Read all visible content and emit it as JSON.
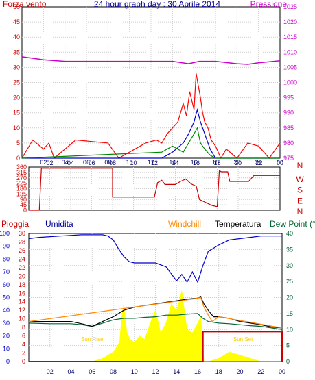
{
  "chart_data": [
    {
      "type": "line",
      "title": "24 hour graph day : 30 Aprile 2014",
      "left_label": "Forza vento",
      "right_label": "Pressione",
      "x_ticks": [
        "02",
        "04",
        "06",
        "08",
        "10",
        "12",
        "14",
        "16",
        "18",
        "20",
        "22",
        "00"
      ],
      "ylim": [
        0,
        50
      ],
      "y_ticks": [
        "0",
        "5",
        "10",
        "15",
        "20",
        "25",
        "30",
        "35",
        "40",
        "45",
        "50"
      ],
      "y2lim": [
        975,
        1025
      ],
      "y2_ticks": [
        "975",
        "980",
        "985",
        "990",
        "995",
        "1000",
        "1005",
        "1010",
        "1015",
        "1020",
        "1025"
      ],
      "series": [
        {
          "role": "pressure",
          "color": "#cc00cc",
          "axis": "right",
          "x": [
            0,
            2,
            4,
            6,
            8,
            10,
            12,
            14,
            15.5,
            16.5,
            18,
            20,
            21,
            22,
            24
          ],
          "y": [
            1008.5,
            1007.5,
            1007,
            1007,
            1007,
            1007,
            1007,
            1007,
            1006.2,
            1007,
            1007,
            1006.2,
            1006,
            1006.5,
            1007.2
          ]
        },
        {
          "role": "wind_gust",
          "color": "#ff0000",
          "axis": "left",
          "x": [
            0,
            1,
            2,
            2.5,
            3,
            5,
            8,
            9,
            11,
            11.5,
            12.5,
            13,
            13.5,
            14,
            14.5,
            15,
            15.3,
            15.6,
            16,
            16.2,
            16.4,
            16.6,
            16.8,
            17,
            17.3,
            17.6,
            18,
            18.5,
            19,
            20,
            21,
            22,
            23,
            24
          ],
          "y": [
            0,
            6,
            3,
            5,
            0,
            6,
            5,
            0,
            4,
            5,
            6,
            5,
            8,
            10,
            12,
            18,
            14,
            22,
            16,
            28,
            24,
            20,
            15,
            12,
            10,
            6,
            4,
            0,
            3,
            0,
            5,
            4,
            0,
            5
          ]
        },
        {
          "role": "wind_avg",
          "color": "#0000cc",
          "axis": "left",
          "x": [
            0,
            13,
            14,
            15,
            15.5,
            16,
            16.3,
            16.6,
            17,
            17.5,
            18,
            24
          ],
          "y": [
            0,
            0,
            2,
            5,
            8,
            12,
            16,
            12,
            8,
            3,
            0,
            0
          ]
        },
        {
          "role": "wind_min",
          "color": "#008800",
          "axis": "left",
          "x": [
            0,
            13,
            14,
            15,
            15.5,
            16,
            16.3,
            16.6,
            17,
            17.5,
            18,
            24
          ],
          "y": [
            0,
            2,
            4,
            2,
            5,
            8,
            10,
            5,
            3,
            1,
            0,
            0
          ]
        }
      ]
    },
    {
      "type": "line",
      "right_ticks": [
        "N",
        "W",
        "S",
        "E",
        "N"
      ],
      "x_ticks": [
        "02",
        "04",
        "06",
        "08",
        "10",
        "12",
        "14",
        "16",
        "18",
        "20",
        "22",
        "00"
      ],
      "ylim": [
        0,
        360
      ],
      "y_ticks": [
        "0",
        "45",
        "90",
        "135",
        "180",
        "225",
        "270",
        "315",
        "360"
      ],
      "series": [
        {
          "role": "wind_direction",
          "color": "#cc0000",
          "x": [
            0,
            1,
            1.2,
            8,
            8,
            12,
            12.3,
            12.7,
            13,
            14,
            14.5,
            15,
            15.5,
            16,
            16.3,
            17,
            17.5,
            18,
            18.2,
            18.4,
            19,
            19.2,
            21,
            21.5,
            24
          ],
          "y": [
            0,
            0,
            350,
            350,
            110,
            110,
            230,
            250,
            215,
            215,
            240,
            260,
            220,
            200,
            90,
            60,
            40,
            30,
            330,
            320,
            320,
            240,
            240,
            290,
            290
          ]
        }
      ]
    },
    {
      "type": "line",
      "labels": {
        "rain": "Pioggia",
        "humidity": "Umidita",
        "windchill": "Windchill",
        "temperature": "Temperatura",
        "dewpoint": "Dew Point (°C"
      },
      "x_ticks": [
        "02",
        "04",
        "06",
        "08",
        "10",
        "12",
        "14",
        "16",
        "18",
        "20",
        "22",
        "00"
      ],
      "humidity_ticks": [
        "0",
        "10",
        "20",
        "30",
        "40",
        "50",
        "60",
        "70",
        "80",
        "90",
        "100"
      ],
      "rain_ticks": [
        "0",
        "2",
        "4",
        "6",
        "8",
        "10",
        "12",
        "14",
        "16",
        "18",
        "20",
        "22",
        "24",
        "26",
        "28",
        "30"
      ],
      "temp_ticks": [
        "0",
        "5",
        "10",
        "15",
        "20",
        "25",
        "30",
        "35",
        "40"
      ],
      "annotations": [
        {
          "text": "Sun Rise",
          "x": 6
        },
        {
          "text": "Sun Set",
          "x": 20.3
        }
      ],
      "series": [
        {
          "role": "humidity",
          "color": "#0000cc",
          "axis": "humidity",
          "x": [
            0,
            1,
            3,
            5,
            7,
            7.5,
            8,
            8.5,
            9,
            9.5,
            10,
            11,
            12,
            13,
            14,
            14.5,
            15,
            15.5,
            16,
            16.5,
            17,
            18,
            19,
            20,
            21,
            22,
            23,
            24
          ],
          "y": [
            96,
            97,
            98,
            99,
            99,
            98,
            95,
            88,
            82,
            78,
            77,
            77,
            77,
            74,
            63,
            68,
            62,
            70,
            62,
            75,
            86,
            91,
            95,
            96,
            97,
            98,
            98,
            98
          ]
        },
        {
          "role": "temperature",
          "color": "#000000",
          "axis": "temp",
          "x": [
            0,
            2,
            4,
            5,
            6,
            7,
            8,
            9,
            10,
            11,
            12,
            13,
            14,
            15,
            16,
            16.3,
            16.6,
            17,
            17.5,
            18,
            19,
            20,
            21,
            22,
            23,
            24
          ],
          "y": [
            12.5,
            12.5,
            12.5,
            11.8,
            11,
            12.5,
            14,
            16,
            17,
            17.5,
            18,
            18.5,
            19,
            19.5,
            19.8,
            20.2,
            18,
            16,
            14,
            14,
            13.5,
            12.5,
            12,
            11.5,
            10.8,
            10.5
          ]
        },
        {
          "role": "dewpoint",
          "color": "#006633",
          "axis": "temp",
          "x": [
            0,
            2,
            4,
            5,
            6,
            7,
            8,
            9,
            10,
            11,
            12,
            13,
            14,
            15,
            16,
            16.5,
            17,
            18,
            19,
            20,
            21,
            22,
            23,
            24
          ],
          "y": [
            12,
            11.8,
            11.8,
            11.5,
            11,
            12,
            13,
            13.5,
            13.5,
            13.8,
            14,
            14.5,
            14.5,
            14.8,
            15,
            13.5,
            12.5,
            12,
            11.8,
            11.5,
            11.2,
            11,
            10.5,
            10
          ]
        },
        {
          "role": "windchill",
          "color": "#ff8800",
          "axis": "temp",
          "x": [
            0,
            15.5,
            16,
            16.3,
            16.6,
            17,
            17.4,
            17.8,
            18,
            24
          ],
          "y": [
            12.5,
            19.5,
            19.8,
            20,
            17,
            14.5,
            12.5,
            13.5,
            14,
            10.5
          ]
        },
        {
          "role": "rain",
          "color": "#cc0000",
          "axis": "rain",
          "x": [
            0,
            16.5,
            16.5,
            24,
            24
          ],
          "y": [
            0,
            0,
            7,
            7,
            0
          ]
        },
        {
          "role": "solar",
          "color": "#ffff00",
          "axis": "temp",
          "x": [
            0,
            6,
            7,
            8,
            8.6,
            8.8,
            9,
            9.3,
            9.6,
            10,
            10.5,
            11,
            11.5,
            12,
            12.5,
            13,
            13.5,
            14,
            14.5,
            15,
            15.5,
            16,
            16.3,
            16.5,
            16.6,
            17,
            18,
            19,
            20,
            21,
            22,
            24
          ],
          "y": [
            0,
            0,
            1,
            3,
            6,
            14,
            18,
            9,
            7,
            6,
            8,
            7,
            12,
            16,
            9,
            12,
            18,
            16,
            22,
            10,
            9,
            12,
            14,
            6,
            0,
            0,
            1,
            3,
            2,
            1,
            0,
            0
          ]
        }
      ]
    }
  ]
}
